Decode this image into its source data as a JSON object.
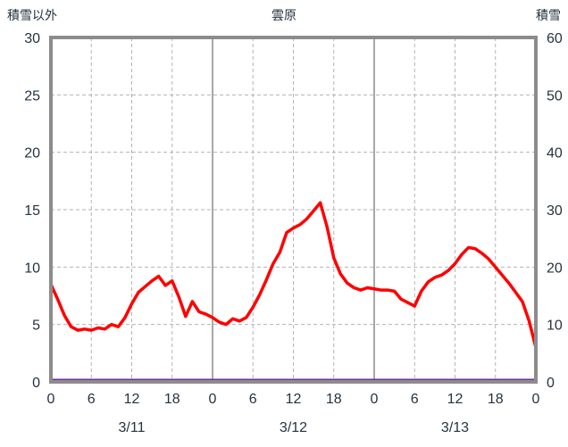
{
  "header": {
    "left_label": "積雪以外",
    "title": "雲原",
    "right_label": "積雪"
  },
  "colors": {
    "border": "#8c8c8c",
    "grid": "#b3b3b3",
    "major_grid": "#8c8c8c",
    "text": "#26323f",
    "line_red": "#ff0000",
    "line_purple": "#7030a0"
  },
  "chart_data": {
    "type": "line",
    "title": "雲原",
    "x_axis": {
      "unit": "hour",
      "range": [
        0,
        72
      ],
      "ticks": [
        0,
        6,
        12,
        18,
        24,
        30,
        36,
        42,
        48,
        54,
        60,
        66,
        72
      ],
      "tick_labels": [
        "0",
        "6",
        "12",
        "18",
        "0",
        "6",
        "12",
        "18",
        "0",
        "6",
        "12",
        "18",
        "0"
      ],
      "major_lines": [
        24,
        48
      ]
    },
    "left_axis": {
      "label": "積雪以外",
      "range": [
        0,
        30
      ],
      "ticks": [
        0,
        5,
        10,
        15,
        20,
        25,
        30
      ],
      "grid_values": [
        5,
        10,
        15,
        20,
        25
      ]
    },
    "right_axis": {
      "label": "積雪",
      "range": [
        0,
        60
      ],
      "ticks": [
        0,
        10,
        20,
        30,
        40,
        50,
        60
      ]
    },
    "day_labels": [
      {
        "text": "3/11",
        "hour": 12
      },
      {
        "text": "3/12",
        "hour": 36
      },
      {
        "text": "3/13",
        "hour": 60
      }
    ],
    "series": [
      {
        "name": "積雪以外",
        "axis": "left",
        "color": "#ff0000",
        "x_step": 1,
        "values": [
          8.5,
          7.2,
          5.8,
          4.8,
          4.5,
          4.6,
          4.5,
          4.7,
          4.6,
          5.0,
          4.8,
          5.6,
          6.8,
          7.8,
          8.3,
          8.8,
          9.2,
          8.4,
          8.8,
          7.4,
          5.7,
          7.0,
          6.1,
          5.9,
          5.6,
          5.2,
          5.0,
          5.5,
          5.3,
          5.6,
          6.5,
          7.6,
          8.9,
          10.3,
          11.3,
          13.0,
          13.4,
          13.7,
          14.2,
          14.9,
          15.6,
          13.5,
          10.8,
          9.4,
          8.6,
          8.2,
          8.0,
          8.2,
          8.1,
          8.0,
          8.0,
          7.9,
          7.2,
          6.9,
          6.6,
          7.9,
          8.7,
          9.1,
          9.3,
          9.7,
          10.3,
          11.1,
          11.7,
          11.6,
          11.2,
          10.7,
          10.0,
          9.3,
          8.6,
          7.8,
          7.0,
          5.3,
          3.0
        ]
      },
      {
        "name": "積雪",
        "axis": "right",
        "color": "#7030a0",
        "x": [
          0,
          72
        ],
        "values": [
          0,
          0
        ]
      }
    ]
  }
}
